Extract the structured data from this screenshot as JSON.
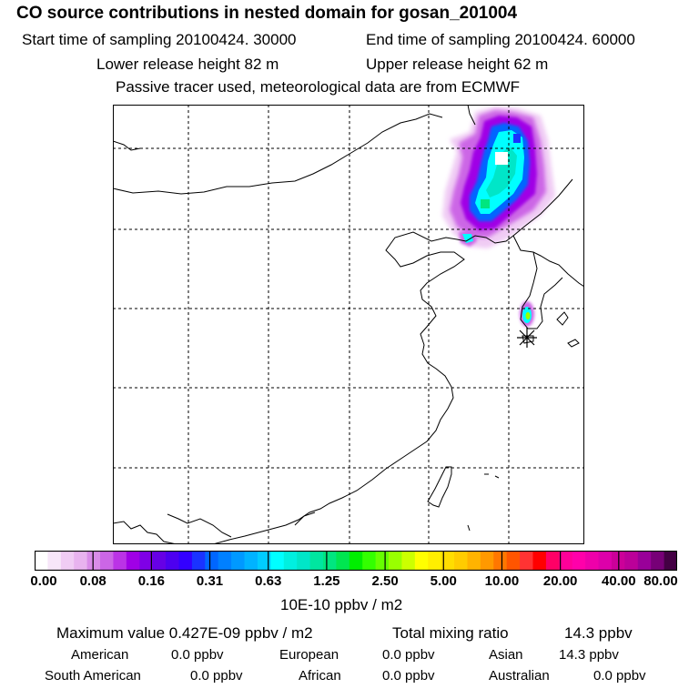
{
  "title": "CO  source contributions in nested domain for gosan_201004",
  "header": {
    "start_time": "Start time of sampling 20100424. 30000",
    "end_time": "End time of sampling 20100424. 60000",
    "lower_height": "Lower release height   82 m",
    "upper_height": "Upper release height   62 m",
    "note": "Passive tracer used, meteorological data are from ECMWF"
  },
  "colorbar": {
    "ticks": [
      "0.00",
      "0.08",
      "0.16",
      "0.31",
      "0.63",
      "1.25",
      "2.50",
      "5.00",
      "10.00",
      "20.00",
      "40.00",
      "80.00"
    ],
    "unit": "10E-10 ppbv / m2",
    "colors": [
      "#ffffff",
      "#f7e6f9",
      "#f0ccf4",
      "#e8b3ef",
      "#d98ce9",
      "#cc66e6",
      "#bb33e6",
      "#a000e6",
      "#7f00e6",
      "#6600e6",
      "#4d00f0",
      "#3300ff",
      "#1a33ff",
      "#0066ff",
      "#0080ff",
      "#0099ff",
      "#00b3ff",
      "#00ccff",
      "#00ffff",
      "#00f0e0",
      "#00e6c8",
      "#00e6a0",
      "#00e680",
      "#00e650",
      "#00ee00",
      "#33ff00",
      "#66ff00",
      "#99ff00",
      "#ccff00",
      "#ffff00",
      "#ffee00",
      "#ffdd00",
      "#ffcc00",
      "#ffb300",
      "#ff9900",
      "#ff7700",
      "#ff5500",
      "#ff3333",
      "#ff0000",
      "#ff0066",
      "#ff0099",
      "#ff00aa",
      "#ee00aa",
      "#dd00aa",
      "#cc0099",
      "#bb0099",
      "#990099",
      "#770077",
      "#440044"
    ]
  },
  "stats": {
    "max_label": "Maximum value  0.427E-09 ppbv / m2",
    "total_label": "Total mixing ratio",
    "total_value": "14.3 ppbv"
  },
  "regions": [
    {
      "name": "American",
      "value": "0.0 ppbv"
    },
    {
      "name": "European",
      "value": "0.0 ppbv"
    },
    {
      "name": "Asian",
      "value": "14.3 ppbv"
    },
    {
      "name": "South American",
      "value": "0.0 ppbv"
    },
    {
      "name": "African",
      "value": "0.0 ppbv"
    },
    {
      "name": "Australian",
      "value": "0.0 ppbv"
    }
  ]
}
